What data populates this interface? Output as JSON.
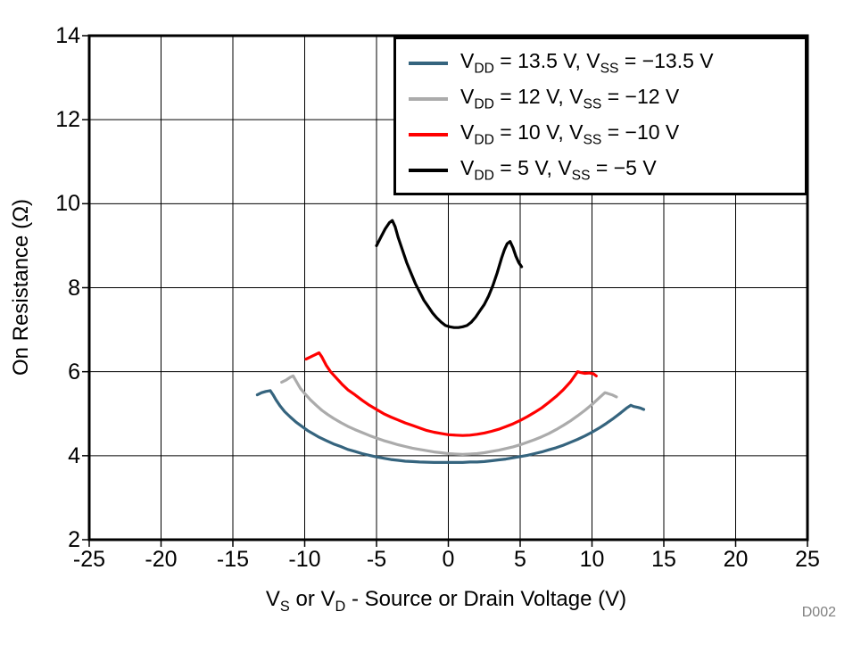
{
  "figure": {
    "watermark": "D002"
  },
  "colors": {
    "axis": "#000000",
    "grid": "#000000",
    "background": "#FFFFFF",
    "watermark": "#808080"
  },
  "chart_data": {
    "type": "line",
    "title": "",
    "ylabel": "On Resistance (Ω)",
    "xlabel": "VS or VD - Source or Drain Voltage (V)",
    "xlabel_parts": [
      {
        "t": "V"
      },
      {
        "s": "S"
      },
      {
        "t": " or V"
      },
      {
        "s": "D"
      },
      {
        "t": " - Source or Drain Voltage (V)"
      }
    ],
    "xlim": [
      -25,
      25
    ],
    "ylim": [
      2,
      14
    ],
    "xticks": [
      -25,
      -20,
      -15,
      -10,
      -5,
      0,
      5,
      10,
      15,
      20,
      25
    ],
    "yticks": [
      2,
      4,
      6,
      8,
      10,
      12,
      14
    ],
    "grid": true,
    "legend_position": "top-right",
    "series": [
      {
        "id": "vdd-13p5",
        "name": "VDD = 13.5 V, VSS = −13.5 V",
        "label_parts": [
          {
            "t": "V"
          },
          {
            "s": "DD"
          },
          {
            "t": " = 13.5 V, V"
          },
          {
            "s": "SS"
          },
          {
            "t": " = −13.5 V"
          }
        ],
        "color": "#35647E",
        "points": [
          [
            -13.3,
            5.45
          ],
          [
            -13.0,
            5.5
          ],
          [
            -12.7,
            5.53
          ],
          [
            -12.4,
            5.55
          ],
          [
            -12.2,
            5.45
          ],
          [
            -12.0,
            5.33
          ],
          [
            -11.7,
            5.18
          ],
          [
            -11.4,
            5.05
          ],
          [
            -11.0,
            4.92
          ],
          [
            -10.6,
            4.8
          ],
          [
            -10.2,
            4.7
          ],
          [
            -9.8,
            4.6
          ],
          [
            -9.4,
            4.52
          ],
          [
            -9.0,
            4.44
          ],
          [
            -8.5,
            4.36
          ],
          [
            -8.0,
            4.28
          ],
          [
            -7.5,
            4.22
          ],
          [
            -7.0,
            4.15
          ],
          [
            -6.5,
            4.1
          ],
          [
            -6.0,
            4.05
          ],
          [
            -5.5,
            4.01
          ],
          [
            -5.0,
            3.97
          ],
          [
            -4.5,
            3.94
          ],
          [
            -4.0,
            3.91
          ],
          [
            -3.5,
            3.89
          ],
          [
            -3.0,
            3.87
          ],
          [
            -2.5,
            3.86
          ],
          [
            -2.0,
            3.85
          ],
          [
            -1.0,
            3.84
          ],
          [
            0,
            3.84
          ],
          [
            1.0,
            3.84
          ],
          [
            1.5,
            3.85
          ],
          [
            2.0,
            3.85
          ],
          [
            2.5,
            3.86
          ],
          [
            3.0,
            3.88
          ],
          [
            3.5,
            3.9
          ],
          [
            4.0,
            3.92
          ],
          [
            4.5,
            3.95
          ],
          [
            5.0,
            3.98
          ],
          [
            5.5,
            4.01
          ],
          [
            6.0,
            4.05
          ],
          [
            6.5,
            4.09
          ],
          [
            7.0,
            4.14
          ],
          [
            7.5,
            4.19
          ],
          [
            8.0,
            4.25
          ],
          [
            8.5,
            4.32
          ],
          [
            9.0,
            4.39
          ],
          [
            9.5,
            4.47
          ],
          [
            10.0,
            4.56
          ],
          [
            10.5,
            4.66
          ],
          [
            11.0,
            4.77
          ],
          [
            11.5,
            4.89
          ],
          [
            12.0,
            5.02
          ],
          [
            12.4,
            5.13
          ],
          [
            12.7,
            5.2
          ],
          [
            12.9,
            5.17
          ],
          [
            13.2,
            5.15
          ],
          [
            13.4,
            5.13
          ],
          [
            13.6,
            5.1
          ]
        ]
      },
      {
        "id": "vdd-12",
        "name": "VDD = 12 V, VSS = −12 V",
        "label_parts": [
          {
            "t": "V"
          },
          {
            "s": "DD"
          },
          {
            "t": " = 12 V, V"
          },
          {
            "s": "SS"
          },
          {
            "t": " = −12 V"
          }
        ],
        "color": "#ABABAB",
        "points": [
          [
            -11.6,
            5.75
          ],
          [
            -11.3,
            5.8
          ],
          [
            -11.0,
            5.87
          ],
          [
            -10.8,
            5.9
          ],
          [
            -10.6,
            5.78
          ],
          [
            -10.3,
            5.6
          ],
          [
            -10.0,
            5.48
          ],
          [
            -9.6,
            5.33
          ],
          [
            -9.2,
            5.2
          ],
          [
            -8.8,
            5.08
          ],
          [
            -8.4,
            4.98
          ],
          [
            -8.0,
            4.89
          ],
          [
            -7.5,
            4.79
          ],
          [
            -7.0,
            4.7
          ],
          [
            -6.5,
            4.62
          ],
          [
            -6.0,
            4.55
          ],
          [
            -5.5,
            4.48
          ],
          [
            -5.0,
            4.42
          ],
          [
            -4.5,
            4.36
          ],
          [
            -4.0,
            4.31
          ],
          [
            -3.5,
            4.26
          ],
          [
            -3.0,
            4.22
          ],
          [
            -2.5,
            4.18
          ],
          [
            -2.0,
            4.15
          ],
          [
            -1.5,
            4.12
          ],
          [
            -1.0,
            4.09
          ],
          [
            -0.5,
            4.07
          ],
          [
            0,
            4.05
          ],
          [
            0.5,
            4.04
          ],
          [
            1.0,
            4.03
          ],
          [
            1.5,
            4.04
          ],
          [
            2.0,
            4.05
          ],
          [
            2.5,
            4.07
          ],
          [
            3.0,
            4.1
          ],
          [
            3.5,
            4.13
          ],
          [
            4.0,
            4.17
          ],
          [
            4.5,
            4.21
          ],
          [
            5.0,
            4.26
          ],
          [
            5.5,
            4.32
          ],
          [
            6.0,
            4.38
          ],
          [
            6.5,
            4.45
          ],
          [
            7.0,
            4.53
          ],
          [
            7.5,
            4.62
          ],
          [
            8.0,
            4.72
          ],
          [
            8.5,
            4.83
          ],
          [
            9.0,
            4.95
          ],
          [
            9.5,
            5.08
          ],
          [
            10.0,
            5.22
          ],
          [
            10.5,
            5.38
          ],
          [
            10.9,
            5.5
          ],
          [
            11.1,
            5.48
          ],
          [
            11.4,
            5.45
          ],
          [
            11.7,
            5.4
          ]
        ]
      },
      {
        "id": "vdd-10",
        "name": "VDD = 10 V, VSS = −10 V",
        "label_parts": [
          {
            "t": "V"
          },
          {
            "s": "DD"
          },
          {
            "t": " = 10 V, V"
          },
          {
            "s": "SS"
          },
          {
            "t": " = −10 V"
          }
        ],
        "color": "#FF0000",
        "points": [
          [
            -9.9,
            6.3
          ],
          [
            -9.6,
            6.35
          ],
          [
            -9.3,
            6.4
          ],
          [
            -9.0,
            6.45
          ],
          [
            -8.8,
            6.35
          ],
          [
            -8.5,
            6.15
          ],
          [
            -8.2,
            6.0
          ],
          [
            -7.8,
            5.85
          ],
          [
            -7.4,
            5.7
          ],
          [
            -7.0,
            5.57
          ],
          [
            -6.5,
            5.45
          ],
          [
            -6.0,
            5.32
          ],
          [
            -5.5,
            5.2
          ],
          [
            -5.0,
            5.1
          ],
          [
            -4.5,
            5.0
          ],
          [
            -4.0,
            4.92
          ],
          [
            -3.5,
            4.85
          ],
          [
            -3.0,
            4.78
          ],
          [
            -2.5,
            4.72
          ],
          [
            -2.0,
            4.66
          ],
          [
            -1.5,
            4.6
          ],
          [
            -1.0,
            4.56
          ],
          [
            -0.5,
            4.53
          ],
          [
            0,
            4.5
          ],
          [
            0.5,
            4.49
          ],
          [
            1.0,
            4.48
          ],
          [
            1.5,
            4.49
          ],
          [
            2.0,
            4.51
          ],
          [
            2.5,
            4.54
          ],
          [
            3.0,
            4.58
          ],
          [
            3.5,
            4.63
          ],
          [
            4.0,
            4.69
          ],
          [
            4.5,
            4.76
          ],
          [
            5.0,
            4.84
          ],
          [
            5.5,
            4.93
          ],
          [
            6.0,
            5.03
          ],
          [
            6.5,
            5.14
          ],
          [
            7.0,
            5.27
          ],
          [
            7.5,
            5.41
          ],
          [
            8.0,
            5.57
          ],
          [
            8.5,
            5.76
          ],
          [
            9.0,
            6.0
          ],
          [
            9.2,
            5.98
          ],
          [
            9.5,
            5.96
          ],
          [
            9.8,
            5.97
          ],
          [
            10.1,
            5.95
          ],
          [
            10.3,
            5.9
          ]
        ]
      },
      {
        "id": "vdd-5",
        "name": "VDD = 5 V, VSS = −5 V",
        "label_parts": [
          {
            "t": "V"
          },
          {
            "s": "DD"
          },
          {
            "t": " = 5 V, V"
          },
          {
            "s": "SS"
          },
          {
            "t": " = −5 V"
          }
        ],
        "color": "#000000",
        "points": [
          [
            -5.0,
            9.0
          ],
          [
            -4.7,
            9.2
          ],
          [
            -4.4,
            9.4
          ],
          [
            -4.1,
            9.55
          ],
          [
            -3.9,
            9.6
          ],
          [
            -3.7,
            9.45
          ],
          [
            -3.5,
            9.2
          ],
          [
            -3.2,
            8.9
          ],
          [
            -2.9,
            8.6
          ],
          [
            -2.6,
            8.35
          ],
          [
            -2.3,
            8.1
          ],
          [
            -2.0,
            7.9
          ],
          [
            -1.7,
            7.7
          ],
          [
            -1.4,
            7.55
          ],
          [
            -1.1,
            7.4
          ],
          [
            -0.8,
            7.28
          ],
          [
            -0.5,
            7.18
          ],
          [
            -0.2,
            7.1
          ],
          [
            0.1,
            7.07
          ],
          [
            0.4,
            7.05
          ],
          [
            0.7,
            7.05
          ],
          [
            1.0,
            7.07
          ],
          [
            1.3,
            7.1
          ],
          [
            1.6,
            7.18
          ],
          [
            1.9,
            7.3
          ],
          [
            2.2,
            7.45
          ],
          [
            2.5,
            7.6
          ],
          [
            2.8,
            7.8
          ],
          [
            3.1,
            8.05
          ],
          [
            3.4,
            8.35
          ],
          [
            3.7,
            8.7
          ],
          [
            3.9,
            8.9
          ],
          [
            4.1,
            9.05
          ],
          [
            4.3,
            9.1
          ],
          [
            4.5,
            8.95
          ],
          [
            4.7,
            8.75
          ],
          [
            4.9,
            8.6
          ],
          [
            5.1,
            8.5
          ]
        ]
      }
    ]
  }
}
